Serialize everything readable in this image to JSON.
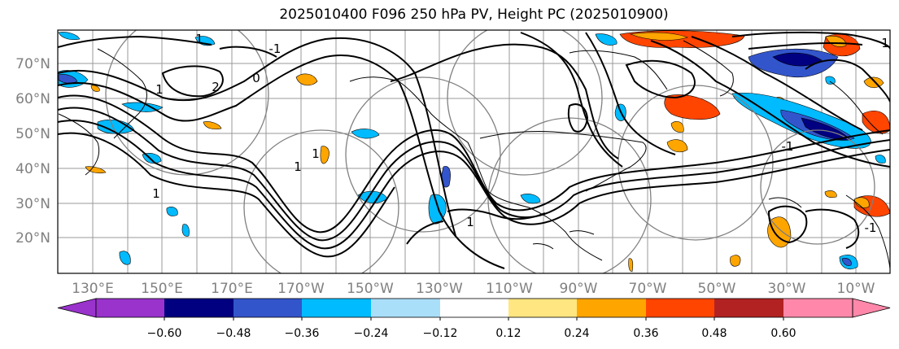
{
  "title": "2025010400 F096 250 hPa PV, Height PC (2025010900)",
  "map": {
    "lat_labels": [
      "70°N",
      "60°N",
      "50°N",
      "40°N",
      "30°N",
      "20°N"
    ],
    "lon_labels": [
      "130°E",
      "150°E",
      "170°E",
      "170°W",
      "150°W",
      "130°W",
      "110°W",
      "90°W",
      "70°W",
      "50°W",
      "30°W",
      "10°W"
    ],
    "contour_labels": [
      "1",
      "1",
      "1",
      "1",
      "2",
      "-1",
      "-1",
      "1",
      "0",
      "-1",
      "1",
      "1"
    ]
  },
  "colorbar": {
    "ticks": [
      "−0.60",
      "−0.48",
      "−0.36",
      "−0.24",
      "−0.12",
      "0.12",
      "0.24",
      "0.36",
      "0.48",
      "0.60"
    ],
    "colors": [
      "#9933cc",
      "#000080",
      "#3355cc",
      "#00bbff",
      "#aadffa",
      "#ffffff",
      "#ffe680",
      "#ffa500",
      "#ff4500",
      "#b22222",
      "#ff88aa",
      "#ff88aa"
    ]
  }
}
